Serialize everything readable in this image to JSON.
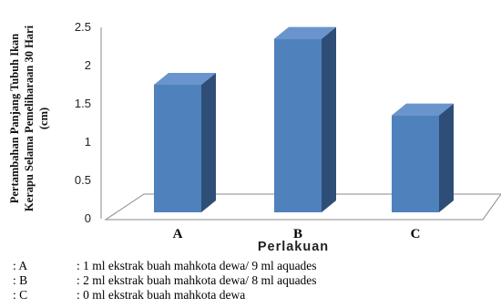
{
  "chart_data": {
    "type": "bar",
    "categories": [
      "A",
      "B",
      "C"
    ],
    "values": [
      1.75,
      2.35,
      1.35
    ],
    "ylabel_lines": [
      "Pertambahan Panjang Tubuh Ikan",
      "Kerapu Selama Pemeliharaan 30 Hari",
      "(cm)"
    ],
    "xlabel": "Perlakuan",
    "ylim": [
      0,
      2.5
    ],
    "yticks": [
      "0",
      "0.5",
      "1",
      "1.5",
      "2",
      "2.5"
    ],
    "grid": false,
    "bar_color_front": "#4F81BD",
    "bar_color_side": "#2E4E78",
    "bar_color_top": "#6A94CC"
  },
  "legend": [
    {
      "key": ": A",
      "text": ": 1 ml ekstrak buah mahkota dewa/ 9 ml aquades"
    },
    {
      "key": ": B",
      "text": ": 2 ml ekstrak buah mahkota dewa/ 8 ml aquades"
    },
    {
      "key": ": C",
      "text": ": 0 ml ekstrak buah mahkota dewa"
    }
  ]
}
